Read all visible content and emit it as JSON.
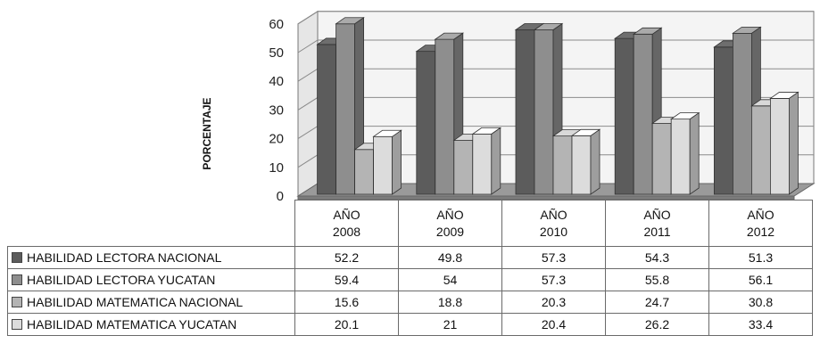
{
  "chart_data": {
    "type": "bar",
    "ylabel": "PORCENTAJE",
    "ylim": [
      0,
      60
    ],
    "yticks": [
      0,
      10,
      20,
      30,
      40,
      50,
      60
    ],
    "grid": true,
    "categories": [
      {
        "line1": "AÑO",
        "line2": "2008"
      },
      {
        "line1": "AÑO",
        "line2": "2009"
      },
      {
        "line1": "AÑO",
        "line2": "2010"
      },
      {
        "line1": "AÑO",
        "line2": "2011"
      },
      {
        "line1": "AÑO",
        "line2": "2012"
      }
    ],
    "series": [
      {
        "name": "HABILIDAD LECTORA NACIONAL",
        "color": "#5c5c5c",
        "values": [
          52.2,
          49.8,
          57.3,
          54.3,
          51.3
        ]
      },
      {
        "name": "HABILIDAD LECTORA YUCATAN",
        "color": "#8e8e8e",
        "values": [
          59.4,
          54,
          57.3,
          55.8,
          56.1
        ]
      },
      {
        "name": "HABILIDAD MATEMATICA NACIONAL",
        "color": "#b4b4b4",
        "values": [
          15.6,
          18.8,
          20.3,
          24.7,
          30.8
        ]
      },
      {
        "name": "HABILIDAD MATEMATICA YUCATAN",
        "color": "#dcdcdc",
        "values": [
          20.1,
          21,
          20.4,
          26.2,
          33.4
        ]
      }
    ]
  }
}
